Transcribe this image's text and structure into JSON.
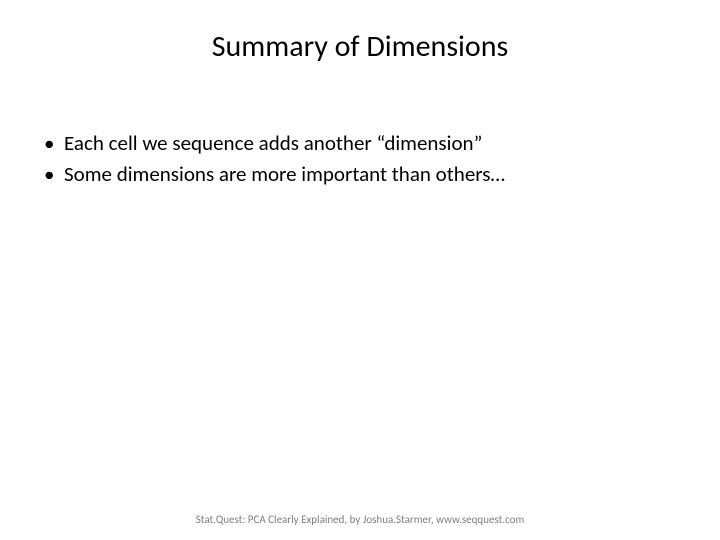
{
  "slide": {
    "title": "Summary of Dimensions",
    "bullets": [
      "Each cell we sequence adds another “dimension”",
      "Some dimensions are more important than others…"
    ],
    "footer": "Stat.Quest: PCA Clearly Explained, by Joshua.Starmer, www.seqquest.com"
  },
  "styling": {
    "background_color": "#ffffff",
    "title_fontsize": 30,
    "title_color": "#000000",
    "bullet_fontsize": 21,
    "bullet_color": "#000000",
    "footer_fontsize": 11,
    "footer_color": "#7f7f7f",
    "font_family": "Calibri"
  }
}
